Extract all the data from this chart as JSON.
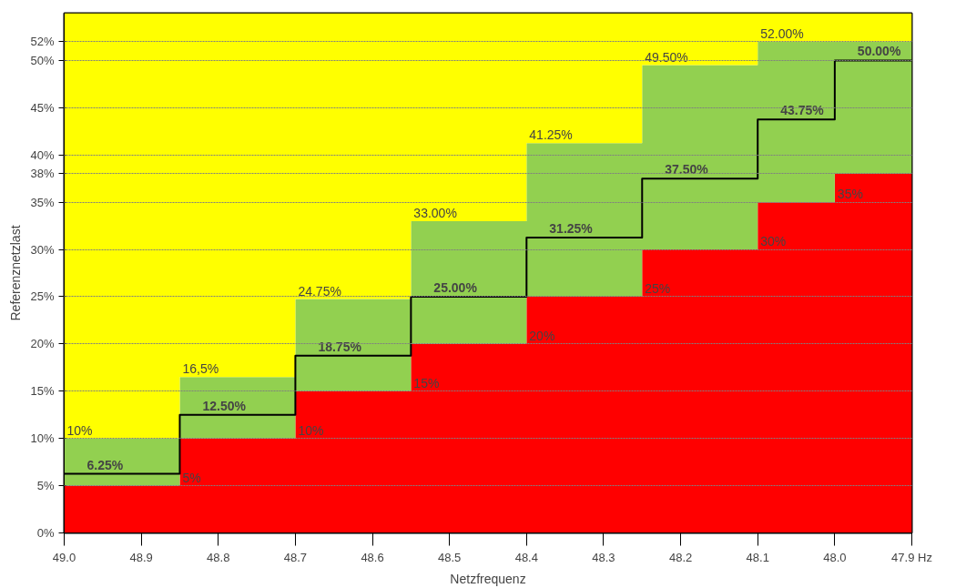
{
  "chart_data": {
    "type": "area",
    "stacked": true,
    "xlabel": "Netzfrequenz",
    "ylabel": "Referenznetzlast",
    "x": [
      49.0,
      48.85,
      48.7,
      48.55,
      48.4,
      48.25,
      48.1,
      48.0,
      47.9
    ],
    "xlim": [
      49.0,
      47.9
    ],
    "xticks": [
      {
        "value": 49.0,
        "label": "49.0"
      },
      {
        "value": 48.9,
        "label": "48.9"
      },
      {
        "value": 48.8,
        "label": "48.8"
      },
      {
        "value": 48.7,
        "label": "48.7"
      },
      {
        "value": 48.6,
        "label": "48.6"
      },
      {
        "value": 48.5,
        "label": "48.5"
      },
      {
        "value": 48.4,
        "label": "48.4"
      },
      {
        "value": 48.3,
        "label": "48.3"
      },
      {
        "value": 48.2,
        "label": "48.2"
      },
      {
        "value": 48.1,
        "label": "48.1"
      },
      {
        "value": 48.0,
        "label": "48.0"
      },
      {
        "value": 47.9,
        "label": "47.9 Hz"
      }
    ],
    "ylim": [
      0,
      55
    ],
    "yticks": [
      {
        "value": 0,
        "label": "0%"
      },
      {
        "value": 5,
        "label": "5%"
      },
      {
        "value": 10,
        "label": "10%"
      },
      {
        "value": 15,
        "label": "15%"
      },
      {
        "value": 20,
        "label": "20%"
      },
      {
        "value": 25,
        "label": "25%"
      },
      {
        "value": 30,
        "label": "30%"
      },
      {
        "value": 35,
        "label": "35%"
      },
      {
        "value": 38,
        "label": "38%"
      },
      {
        "value": 40,
        "label": "40%"
      },
      {
        "value": 45,
        "label": "45%"
      },
      {
        "value": 50,
        "label": "50%"
      },
      {
        "value": 52,
        "label": "52%"
      }
    ],
    "grid": "y",
    "series": [
      {
        "color": "#ff0000",
        "values": [
          5,
          10,
          15,
          20,
          25,
          30,
          35,
          38,
          38
        ]
      },
      {
        "color": "#92d050",
        "values": [
          5,
          6.5,
          9.75,
          13,
          16.25,
          19.5,
          17,
          14,
          14
        ]
      },
      {
        "color": "#ffff00",
        "values": [
          45,
          38.5,
          30.25,
          22,
          13.75,
          5.5,
          3,
          3,
          3
        ]
      },
      {
        "type": "step",
        "color": "#000000",
        "values": [
          6.25,
          12.5,
          18.75,
          25,
          31.25,
          37.5,
          43.75,
          50,
          50
        ],
        "value_labels": [
          "6.25%",
          "12.50%",
          "18.75%",
          "25.00%",
          "31.25%",
          "37.50%",
          "43.75%",
          "50.00%",
          null
        ]
      }
    ],
    "annotations": [
      {
        "text": "10%",
        "x": 49.0,
        "y": 10
      },
      {
        "text": "16,5%",
        "x": 48.85,
        "y": 16.5
      },
      {
        "text": "24.75%",
        "x": 48.7,
        "y": 24.75
      },
      {
        "text": "33.00%",
        "x": 48.55,
        "y": 33
      },
      {
        "text": "41.25%",
        "x": 48.4,
        "y": 41.25
      },
      {
        "text": "49.50%",
        "x": 48.25,
        "y": 49.5
      },
      {
        "text": "52.00%",
        "x": 48.1,
        "y": 52
      },
      {
        "text": "5%",
        "x": 48.85,
        "y": 5
      },
      {
        "text": "10%",
        "x": 48.7,
        "y": 10
      },
      {
        "text": "15%",
        "x": 48.55,
        "y": 15
      },
      {
        "text": "20%",
        "x": 48.4,
        "y": 20
      },
      {
        "text": "25%",
        "x": 48.25,
        "y": 25
      },
      {
        "text": "30%",
        "x": 48.1,
        "y": 30
      },
      {
        "text": "35%",
        "x": 48.0,
        "y": 35
      }
    ]
  }
}
